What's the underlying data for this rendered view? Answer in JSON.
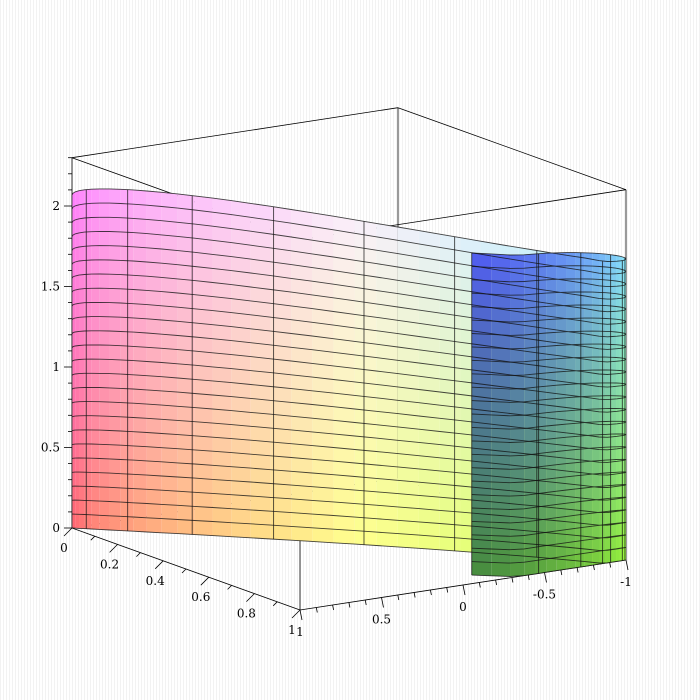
{
  "chart_data": {
    "type": "surface3d",
    "title": "",
    "surface": "cylindrical wall x = cos(t), y = sin(t)·something, z from 0 to 2",
    "axes": {
      "x": {
        "label": "",
        "range": [
          0,
          1
        ],
        "ticks": [
          "0",
          "0.2",
          "0.4",
          "0.6",
          "0.8",
          "1"
        ]
      },
      "y": {
        "label": "",
        "range": [
          1,
          -1
        ],
        "ticks": [
          "1",
          "0.5",
          "0",
          "-0.5",
          "-1"
        ]
      },
      "z": {
        "label": "",
        "range": [
          0,
          2.3
        ],
        "ticks": [
          "0",
          "0.5",
          "1",
          "1.5",
          "2"
        ]
      }
    },
    "mesh": {
      "u_lines": 14,
      "v_lines": 26
    },
    "box": true,
    "colormap": [
      "#ff4060",
      "#ffff80",
      "#a0ff40",
      "#60ffff",
      "#4040ff",
      "#ff40ff"
    ]
  }
}
